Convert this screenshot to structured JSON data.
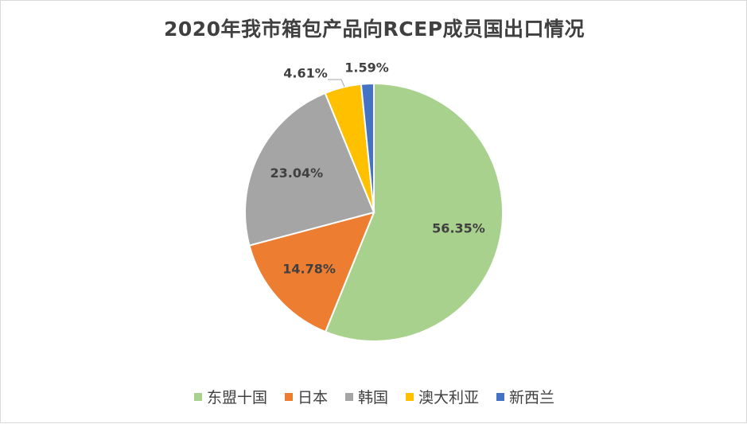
{
  "chart_data": {
    "type": "pie",
    "title": "2020年我市箱包产品向RCEP成员国出口情况",
    "categories": [
      "东盟十国",
      "日本",
      "韩国",
      "澳大利亚",
      "新西兰"
    ],
    "values": [
      56.35,
      14.78,
      23.04,
      4.61,
      1.59
    ],
    "labels": [
      "56.35%",
      "14.78%",
      "23.04%",
      "4.61%",
      "1.59%"
    ],
    "unit": "%",
    "colors": [
      "#a9d18e",
      "#ed7d31",
      "#a5a5a5",
      "#ffc000",
      "#4472c4"
    ],
    "legend_position": "bottom"
  }
}
